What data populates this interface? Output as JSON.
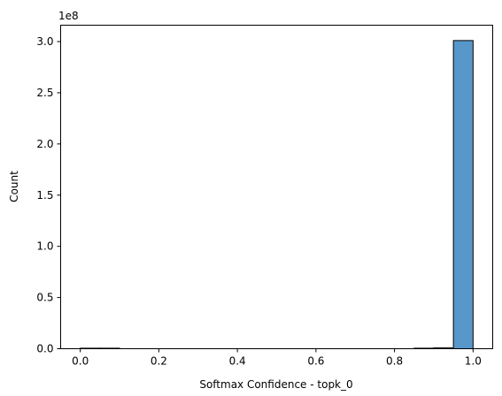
{
  "chart_data": {
    "type": "bar",
    "xlabel": "Softmax Confidence - topk_0",
    "ylabel": "Count",
    "y_offset_text": "1e8",
    "x_ticks": [
      0.0,
      0.2,
      0.4,
      0.6,
      0.8,
      1.0
    ],
    "x_tick_labels": [
      "0.0",
      "0.2",
      "0.4",
      "0.6",
      "0.8",
      "1.0"
    ],
    "y_ticks": [
      0.0,
      0.5,
      1.0,
      1.5,
      2.0,
      2.5,
      3.0
    ],
    "y_tick_labels": [
      "0.0",
      "0.5",
      "1.0",
      "1.5",
      "2.0",
      "2.5",
      "3.0"
    ],
    "xlim": [
      -0.05,
      1.05
    ],
    "ylim": [
      0,
      3.16
    ],
    "bin_width": 0.05,
    "bins": [
      {
        "x0": 0.0,
        "x1": 0.05,
        "value": 0.005
      },
      {
        "x0": 0.05,
        "x1": 0.1,
        "value": 0.005
      },
      {
        "x0": 0.85,
        "x1": 0.9,
        "value": 0.005
      },
      {
        "x0": 0.9,
        "x1": 0.95,
        "value": 0.008
      },
      {
        "x0": 0.95,
        "x1": 1.0,
        "value": 3.01
      }
    ],
    "bar_color": "#5897c9",
    "edge_color": "#000000",
    "grid": false,
    "legend": "none"
  }
}
